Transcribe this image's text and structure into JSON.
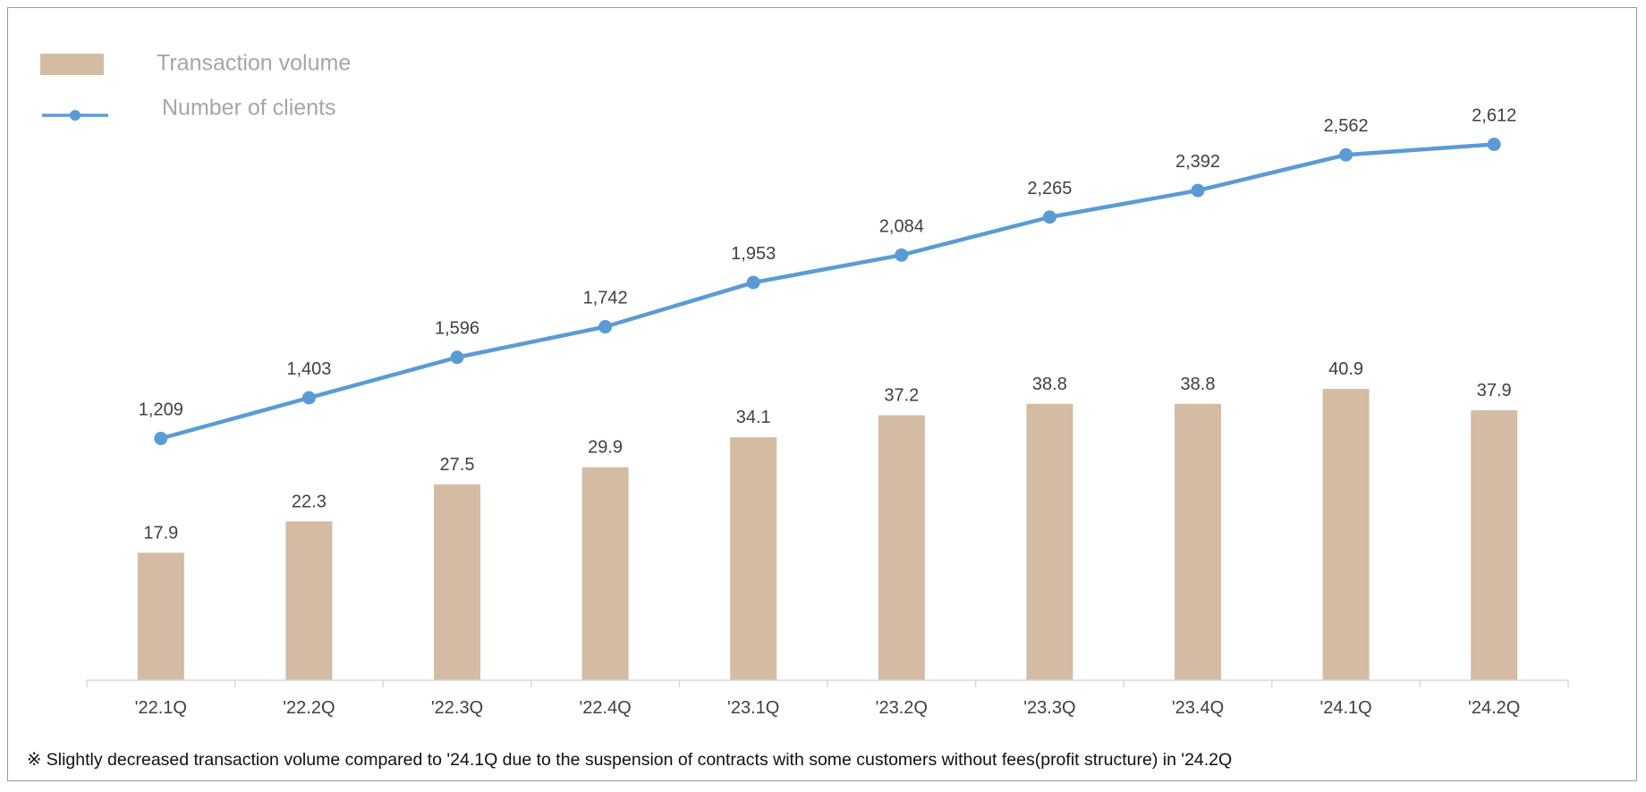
{
  "chart_data": {
    "type": "bar",
    "categories": [
      "'22.1Q",
      "'22.2Q",
      "'22.3Q",
      "'22.4Q",
      "'23.1Q",
      "'23.2Q",
      "'23.3Q",
      "'23.4Q",
      "'24.1Q",
      "'24.2Q"
    ],
    "series": [
      {
        "name": "Transaction volume",
        "kind": "bar",
        "color": "#d4bca4",
        "values": [
          17.9,
          22.3,
          27.5,
          29.9,
          34.1,
          37.2,
          38.8,
          38.8,
          40.9,
          37.9
        ],
        "labels": [
          "17.9",
          "22.3",
          "27.5",
          "29.9",
          "34.1",
          "37.2",
          "38.8",
          "38.8",
          "40.9",
          "37.9"
        ]
      },
      {
        "name": "Number of clients",
        "kind": "line",
        "color": "#5b9bd5",
        "values": [
          1209,
          1403,
          1596,
          1742,
          1953,
          2084,
          2265,
          2392,
          2562,
          2612
        ],
        "labels": [
          "1,209",
          "1,403",
          "1,596",
          "1,742",
          "1,953",
          "2,084",
          "2,265",
          "2,392",
          "2,562",
          "2,612"
        ]
      }
    ],
    "legend": "top-left",
    "grid": false
  },
  "footnote": "※ Slightly decreased transaction volume compared to '24.1Q due to the suspension of contracts with some customers without fees(profit structure) in '24.2Q"
}
